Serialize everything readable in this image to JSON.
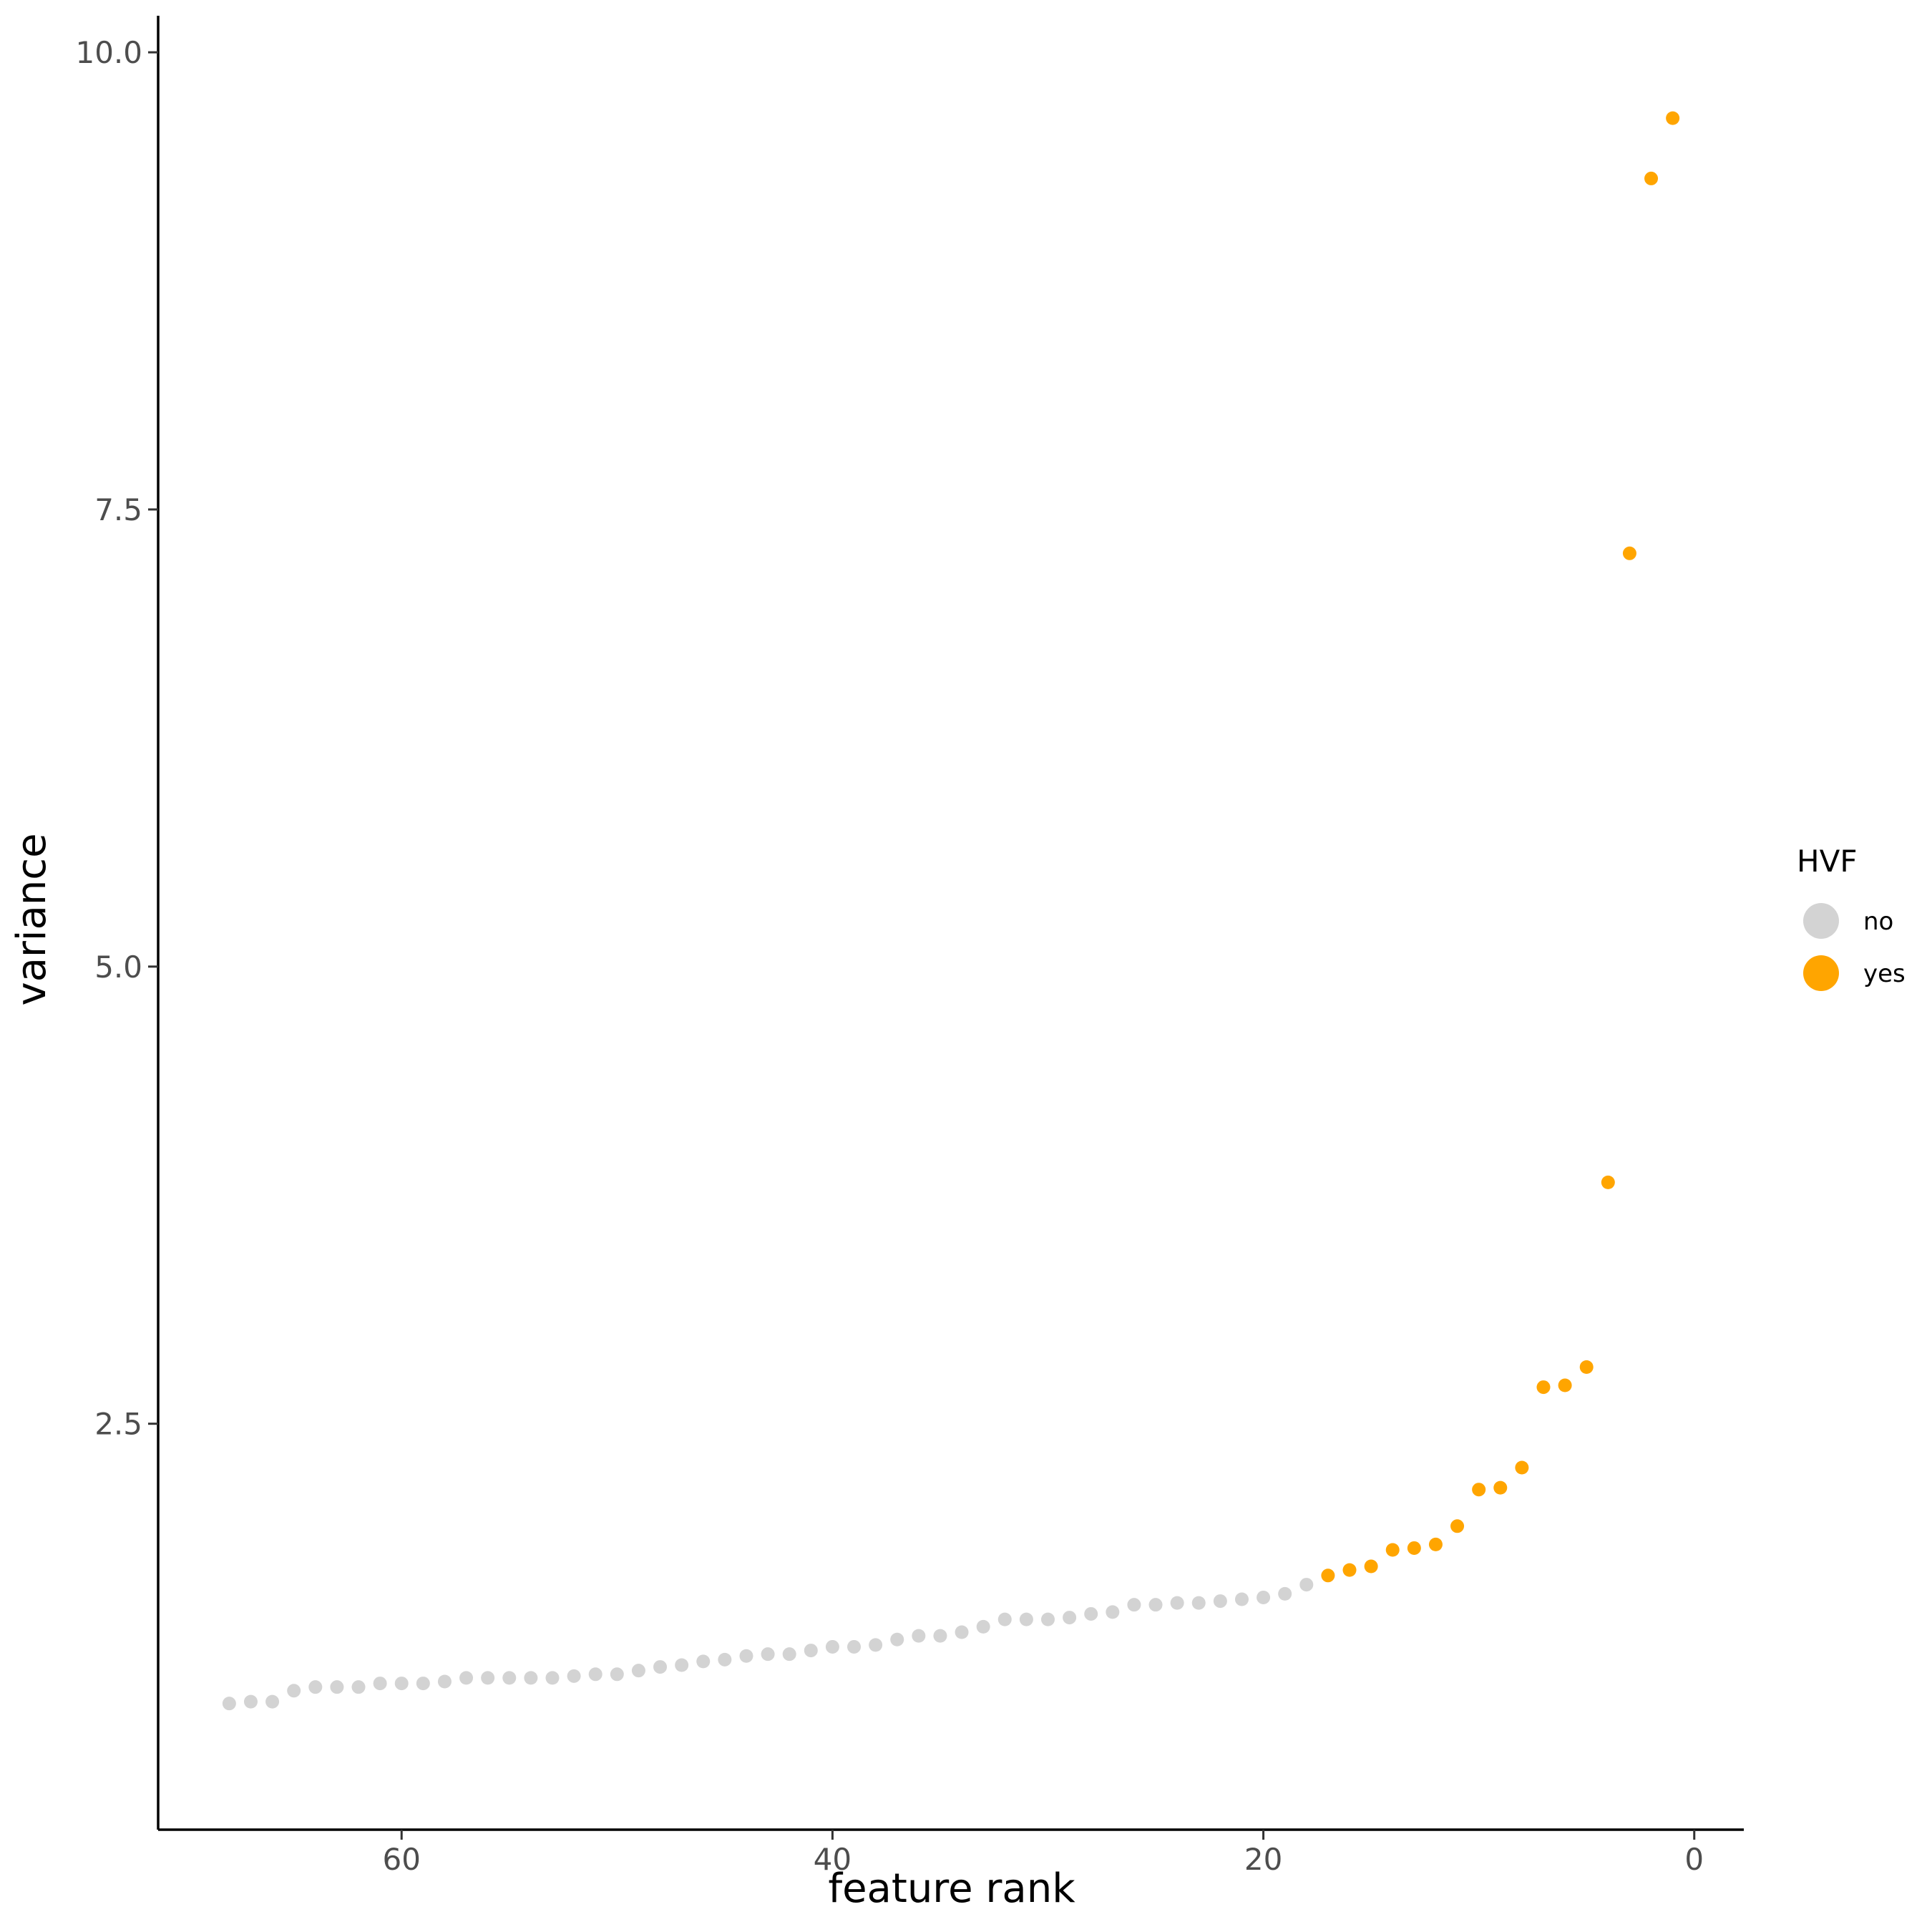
{
  "chart_data": {
    "type": "scatter",
    "xlabel": "feature rank",
    "ylabel": "variance",
    "x_reversed": true,
    "xlim": [
      71.3,
      -2.3
    ],
    "ylim": [
      0.28,
      10.2
    ],
    "x_ticks": [
      60,
      40,
      20,
      0
    ],
    "x_tick_labels": [
      "60",
      "40",
      "20",
      "0"
    ],
    "y_ticks": [
      2.5,
      5.0,
      7.5,
      10.0
    ],
    "y_tick_labels": [
      "2.5",
      "5.0",
      "7.5",
      "10.0"
    ],
    "grid": false,
    "legend": {
      "title": "HVF",
      "placement": "right",
      "entries": [
        {
          "label": "no",
          "color": "#d3d3d3"
        },
        {
          "label": "yes",
          "color": "#ffa500"
        }
      ]
    },
    "series": [
      {
        "name": "no",
        "color": "#d3d3d3",
        "x": [
          68,
          67,
          66,
          65,
          64,
          63,
          62,
          61,
          60,
          59,
          58,
          57,
          56,
          55,
          54,
          53,
          52,
          51,
          50,
          49,
          48,
          47,
          46,
          45,
          44,
          43,
          42,
          41,
          40,
          39,
          38,
          37,
          36,
          35,
          34,
          33,
          32,
          31,
          30,
          29,
          28,
          27,
          26,
          25,
          24,
          23,
          22,
          21,
          20,
          19,
          18
        ],
        "y": [
          0.97,
          0.98,
          0.98,
          1.04,
          1.06,
          1.06,
          1.06,
          1.08,
          1.08,
          1.08,
          1.09,
          1.11,
          1.11,
          1.11,
          1.11,
          1.11,
          1.12,
          1.13,
          1.13,
          1.15,
          1.17,
          1.18,
          1.2,
          1.21,
          1.23,
          1.24,
          1.24,
          1.26,
          1.28,
          1.28,
          1.29,
          1.32,
          1.34,
          1.34,
          1.36,
          1.39,
          1.43,
          1.43,
          1.43,
          1.44,
          1.46,
          1.47,
          1.51,
          1.51,
          1.52,
          1.52,
          1.53,
          1.54,
          1.55,
          1.57,
          1.62
        ]
      },
      {
        "name": "yes",
        "color": "#ffa500",
        "x": [
          17,
          16,
          15,
          14,
          13,
          12,
          11,
          10,
          9,
          8,
          7,
          6,
          5,
          4,
          3,
          2,
          1
        ],
        "y": [
          1.67,
          1.7,
          1.72,
          1.81,
          1.82,
          1.84,
          1.94,
          2.14,
          2.15,
          2.26,
          2.7,
          2.71,
          2.81,
          3.82,
          7.26,
          9.31,
          9.64
        ]
      }
    ]
  }
}
